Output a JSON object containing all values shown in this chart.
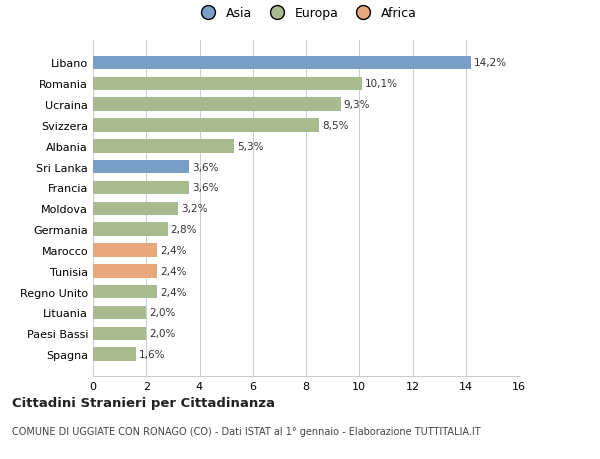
{
  "categories": [
    "Spagna",
    "Paesi Bassi",
    "Lituania",
    "Regno Unito",
    "Tunisia",
    "Marocco",
    "Germania",
    "Moldova",
    "Francia",
    "Sri Lanka",
    "Albania",
    "Svizzera",
    "Ucraina",
    "Romania",
    "Libano"
  ],
  "values": [
    1.6,
    2.0,
    2.0,
    2.4,
    2.4,
    2.4,
    2.8,
    3.2,
    3.6,
    3.6,
    5.3,
    8.5,
    9.3,
    10.1,
    14.2
  ],
  "labels": [
    "1,6%",
    "2,0%",
    "2,0%",
    "2,4%",
    "2,4%",
    "2,4%",
    "2,8%",
    "3,2%",
    "3,6%",
    "3,6%",
    "5,3%",
    "8,5%",
    "9,3%",
    "10,1%",
    "14,2%"
  ],
  "colors": [
    "#a8bb8e",
    "#a8bb8e",
    "#a8bb8e",
    "#a8bb8e",
    "#e8a87c",
    "#e8a87c",
    "#a8bb8e",
    "#a8bb8e",
    "#a8bb8e",
    "#7b9ec8",
    "#a8bb8e",
    "#a8bb8e",
    "#a8bb8e",
    "#a8bb8e",
    "#7b9ec8"
  ],
  "legend": [
    {
      "label": "Asia",
      "color": "#7b9ec8"
    },
    {
      "label": "Europa",
      "color": "#a8bb8e"
    },
    {
      "label": "Africa",
      "color": "#e8a87c"
    }
  ],
  "xlim": [
    0,
    16
  ],
  "xticks": [
    0,
    2,
    4,
    6,
    8,
    10,
    12,
    14,
    16
  ],
  "title": "Cittadini Stranieri per Cittadinanza",
  "subtitle": "COMUNE DI UGGIATE CON RONAGO (CO) - Dati ISTAT al 1° gennaio - Elaborazione TUTTITALIA.IT",
  "background_color": "#ffffff",
  "grid_color": "#cccccc"
}
